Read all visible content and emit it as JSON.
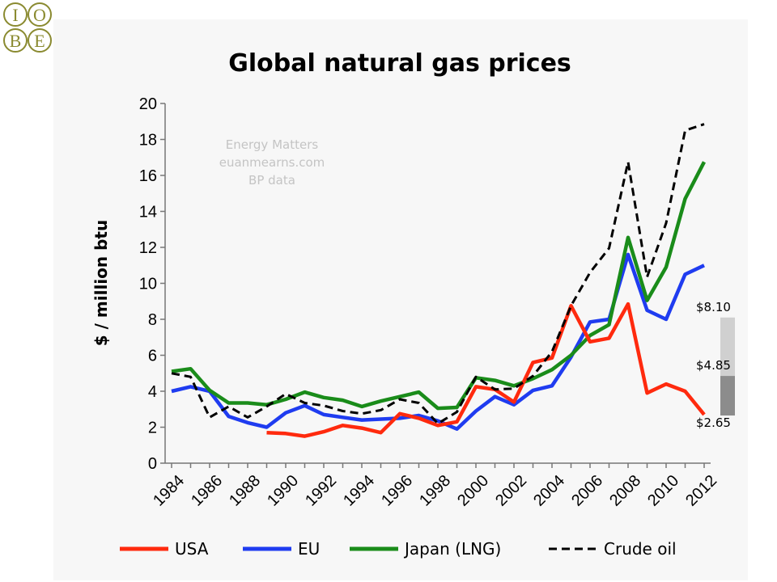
{
  "logo": {
    "letters": [
      "I",
      "O",
      "B",
      "E"
    ],
    "ring_color": "#8a8a30"
  },
  "watermark": {
    "lines": [
      "Energy Matters",
      "euanmearns.com",
      "BP data"
    ]
  },
  "chart_data": {
    "type": "line",
    "title": "Global natural gas prices",
    "xlabel": "",
    "ylabel": "$ / million btu",
    "x": [
      1984,
      1985,
      1986,
      1987,
      1988,
      1989,
      1990,
      1991,
      1992,
      1993,
      1994,
      1995,
      1996,
      1997,
      1998,
      1999,
      2000,
      2001,
      2002,
      2003,
      2004,
      2005,
      2006,
      2007,
      2008,
      2009,
      2010,
      2011,
      2012
    ],
    "xticks": [
      "1984",
      "1986",
      "1988",
      "1990",
      "1992",
      "1994",
      "1996",
      "1998",
      "2000",
      "2002",
      "2004",
      "2006",
      "2008",
      "2010",
      "2012"
    ],
    "yticks": [
      "0",
      "2",
      "4",
      "6",
      "8",
      "10",
      "12",
      "14",
      "16",
      "18",
      "20"
    ],
    "ylim": [
      0,
      20
    ],
    "grid": false,
    "legend_position": "bottom",
    "series": [
      {
        "name": "USA",
        "color": "#ff2a0e",
        "dash": false,
        "values": [
          null,
          null,
          null,
          null,
          null,
          1.7,
          1.65,
          1.5,
          1.75,
          2.1,
          1.95,
          1.7,
          2.75,
          2.5,
          2.1,
          2.3,
          4.25,
          4.1,
          3.4,
          5.6,
          5.85,
          8.75,
          6.75,
          6.95,
          8.85,
          3.9,
          4.4,
          4.0,
          2.7
        ]
      },
      {
        "name": "EU",
        "color": "#1f3cf0",
        "dash": false,
        "values": [
          4.0,
          4.25,
          4.0,
          2.6,
          2.25,
          2.0,
          2.8,
          3.2,
          2.7,
          2.55,
          2.4,
          2.45,
          2.5,
          2.65,
          2.35,
          1.9,
          2.9,
          3.7,
          3.25,
          4.05,
          4.3,
          5.9,
          7.85,
          8.0,
          11.6,
          8.5,
          8.0,
          10.5,
          11.0
        ]
      },
      {
        "name": "Japan (LNG)",
        "color": "#1a8c1a",
        "dash": false,
        "values": [
          5.1,
          5.25,
          4.05,
          3.35,
          3.35,
          3.25,
          3.55,
          3.95,
          3.65,
          3.5,
          3.15,
          3.45,
          3.7,
          3.95,
          3.05,
          3.1,
          4.75,
          4.6,
          4.3,
          4.7,
          5.2,
          6.0,
          7.1,
          7.7,
          12.55,
          9.05,
          10.9,
          14.7,
          16.75
        ]
      },
      {
        "name": "Crude oil",
        "color": "#000000",
        "dash": true,
        "values": [
          5.0,
          4.8,
          2.55,
          3.15,
          2.55,
          3.15,
          3.85,
          3.35,
          3.2,
          2.9,
          2.75,
          2.95,
          3.55,
          3.35,
          2.2,
          2.85,
          4.8,
          4.1,
          4.15,
          4.85,
          6.2,
          8.75,
          10.6,
          11.95,
          16.75,
          10.35,
          13.35,
          18.5,
          18.85
        ]
      }
    ],
    "annotations": [
      {
        "text": "$8.10",
        "value": 8.1
      },
      {
        "text": "$4.85",
        "value": 4.85
      },
      {
        "text": "$2.65",
        "value": 2.65
      }
    ]
  }
}
